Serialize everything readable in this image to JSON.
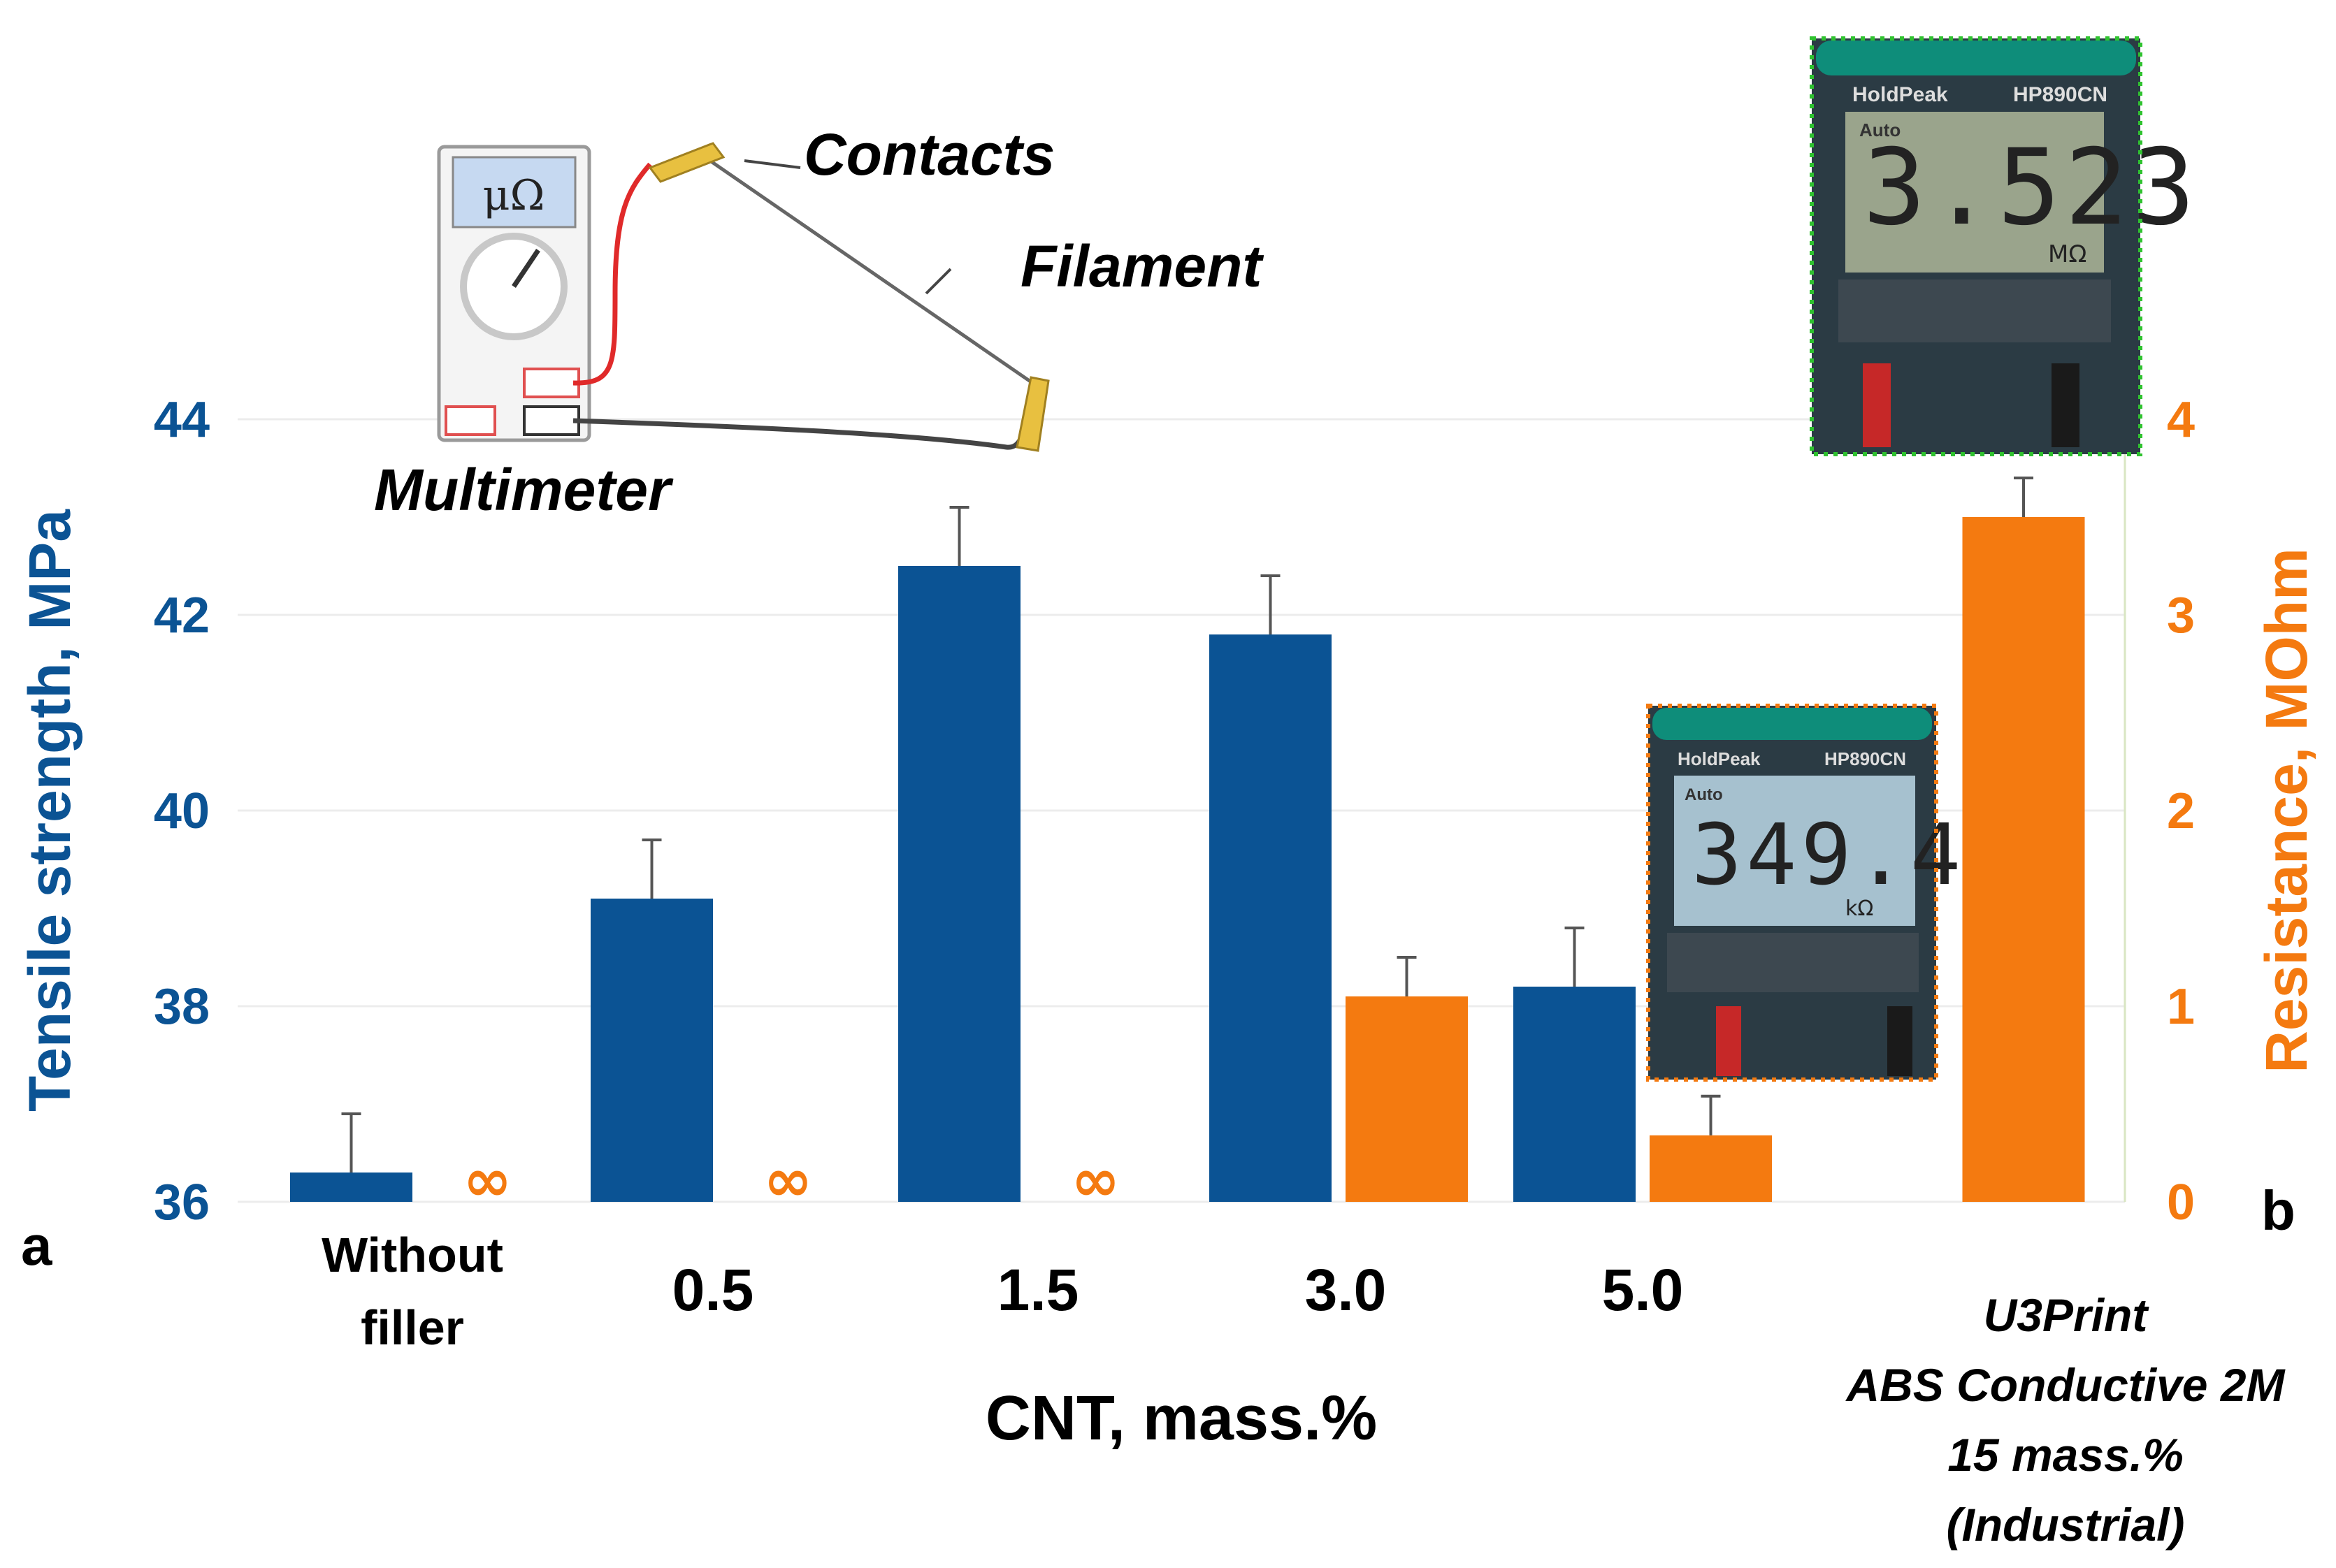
{
  "chart_data": {
    "type": "bar",
    "categories": [
      "Without filler",
      "0.5",
      "1.5",
      "3.0",
      "5.0",
      "U3Print ABS Conductive 2M 15 mass.% (Industrial)"
    ],
    "series": [
      {
        "name": "Tensile strength, MPa",
        "axis": "left",
        "color": "#0b5394",
        "values": [
          36.3,
          39.1,
          42.5,
          41.8,
          38.2,
          null
        ],
        "errors": [
          0.6,
          0.6,
          0.6,
          0.6,
          0.6,
          null
        ]
      },
      {
        "name": "Resistance, MOhm",
        "axis": "right",
        "color": "#f47a10",
        "values": [
          null,
          null,
          null,
          1.05,
          0.34,
          3.5
        ],
        "errors": [
          null,
          null,
          null,
          0.2,
          0.2,
          0.2
        ],
        "infinite_label": "∞"
      }
    ],
    "ylabel_left": "Tensile strength, MPa",
    "ylabel_right": "Resistance, MOhm",
    "ylim_left": [
      36,
      44
    ],
    "yticks_left": [
      "36",
      "38",
      "40",
      "42",
      "44"
    ],
    "ylim_right": [
      0,
      4
    ],
    "yticks_right": [
      "0",
      "1",
      "2",
      "3",
      "4"
    ],
    "xlabel": "CNT, mass.%",
    "xticks": {
      "without_filler_1": "Without",
      "without_filler_2": "filler",
      "c05": "0.5",
      "c15": "1.5",
      "c30": "3.0",
      "c50": "5.0",
      "u3print_1": "U3Print",
      "u3print_2": "ABS Conductive 2M",
      "u3print_3": "15 mass.%",
      "u3print_4": "(Industrial)"
    },
    "panel_labels": {
      "a": "a",
      "b": "b"
    },
    "grid": true
  },
  "annotations": {
    "contacts": "Contacts",
    "filament": "Filament",
    "multimeter": "Multimeter",
    "meter_unit": "μΩ"
  },
  "photos": {
    "reading_large": "3.523",
    "reading_large_unit": "MΩ",
    "reading_small": "349.4",
    "reading_small_unit": "kΩ",
    "brand": "HoldPeak",
    "model": "HP890CN",
    "auto": "Auto"
  }
}
